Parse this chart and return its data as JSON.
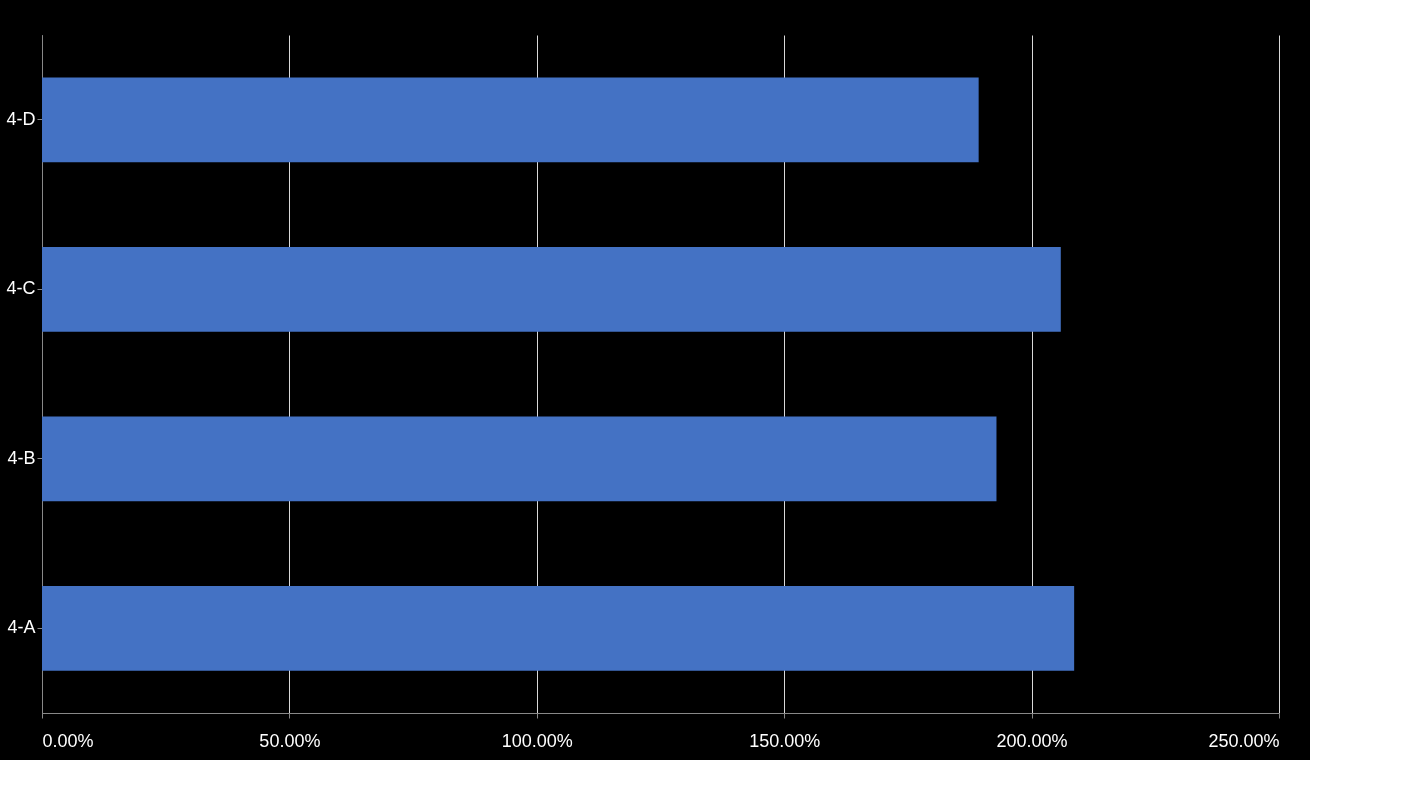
{
  "chart_data": {
    "type": "bar",
    "orientation": "horizontal",
    "categories": [
      "4-D",
      "4-C",
      "4-B",
      "4-A"
    ],
    "values": [
      189.3,
      205.9,
      192.9,
      208.6
    ],
    "color": "#4472c4",
    "xlim": [
      0,
      250
    ],
    "xticks": [
      {
        "value": 0,
        "label": "0.00%"
      },
      {
        "value": 50,
        "label": "50.00%"
      },
      {
        "value": 100,
        "label": "100.00%"
      },
      {
        "value": 150,
        "label": "150.00%"
      },
      {
        "value": 200,
        "label": "200.00%"
      },
      {
        "value": 250,
        "label": "250.00%"
      }
    ],
    "grid": "x"
  }
}
